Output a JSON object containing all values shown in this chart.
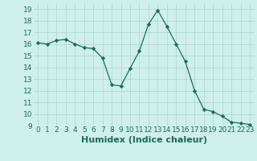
{
  "x": [
    0,
    1,
    2,
    3,
    4,
    5,
    6,
    7,
    8,
    9,
    10,
    11,
    12,
    13,
    14,
    15,
    16,
    17,
    18,
    19,
    20,
    21,
    22,
    23
  ],
  "y": [
    16.1,
    16.0,
    16.3,
    16.4,
    16.0,
    15.7,
    15.6,
    14.8,
    12.5,
    12.4,
    13.9,
    15.4,
    17.7,
    18.9,
    17.5,
    16.0,
    14.5,
    12.0,
    10.4,
    10.2,
    9.8,
    9.3,
    9.2,
    9.1
  ],
  "line_color": "#1a6b5a",
  "marker": "D",
  "marker_size": 2.2,
  "bg_color": "#cff0ea",
  "grid_color": "#aad4cc",
  "xlabel": "Humidex (Indice chaleur)",
  "xlim": [
    -0.5,
    23.5
  ],
  "ylim": [
    9,
    19.5
  ],
  "yticks": [
    9,
    10,
    11,
    12,
    13,
    14,
    15,
    16,
    17,
    18,
    19
  ],
  "xticks": [
    0,
    1,
    2,
    3,
    4,
    5,
    6,
    7,
    8,
    9,
    10,
    11,
    12,
    13,
    14,
    15,
    16,
    17,
    18,
    19,
    20,
    21,
    22,
    23
  ],
  "tick_label_fontsize": 6.5,
  "xlabel_fontsize": 8,
  "tick_color": "#1a6b5a",
  "label_color": "#1a6b5a"
}
